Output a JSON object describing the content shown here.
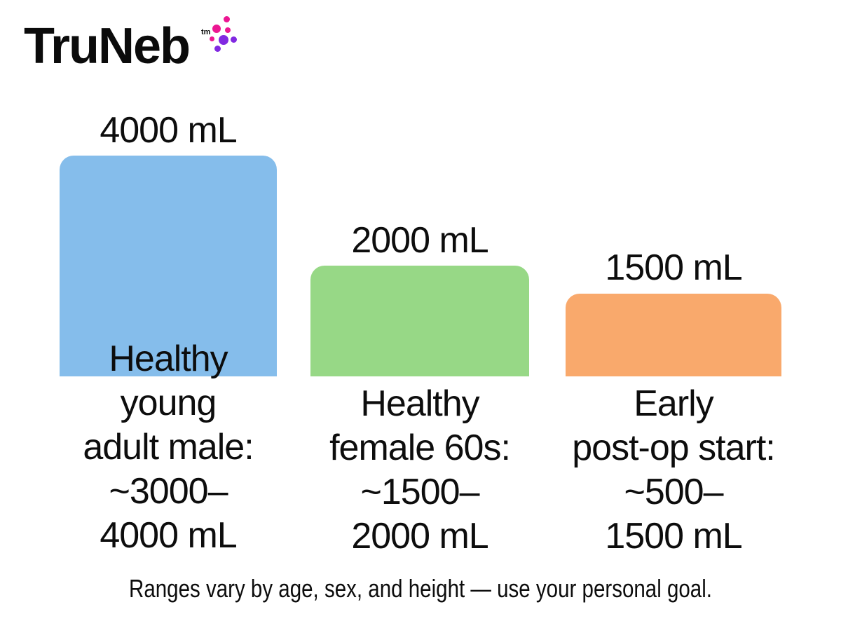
{
  "brand": {
    "name": "TruNeb",
    "trademark": "tm",
    "dot_colors": {
      "magenta": "#EC1692",
      "purple": "#8129E1"
    }
  },
  "chart_data": {
    "type": "bar",
    "title": "",
    "unit": "mL",
    "ylim": [
      0,
      4000
    ],
    "grid": false,
    "legend": false,
    "categories": [
      "Healthy young adult male: ~3000–4000 mL",
      "Healthy female 60s: ~1500–2000 mL",
      "Early post-op start: ~500–1500 mL"
    ],
    "values": [
      4000,
      2000,
      1500
    ],
    "columns": [
      {
        "value": 4000,
        "value_label": "4000 mL",
        "color": "#85BDEB",
        "label_lines": [
          "Healthy",
          "young",
          "adult male:",
          "~3000–",
          "4000 mL"
        ]
      },
      {
        "value": 2000,
        "value_label": "2000 mL",
        "color": "#97D886",
        "label_lines": [
          "Healthy",
          "female 60s:",
          "~1500–",
          "2000 mL"
        ]
      },
      {
        "value": 1500,
        "value_label": "1500 mL",
        "color": "#F9A96C",
        "label_lines": [
          "Early",
          "post-op start:",
          "~500–",
          "1500 mL"
        ]
      }
    ],
    "footnote": "Ranges vary by age, sex, and height — use your personal goal."
  }
}
